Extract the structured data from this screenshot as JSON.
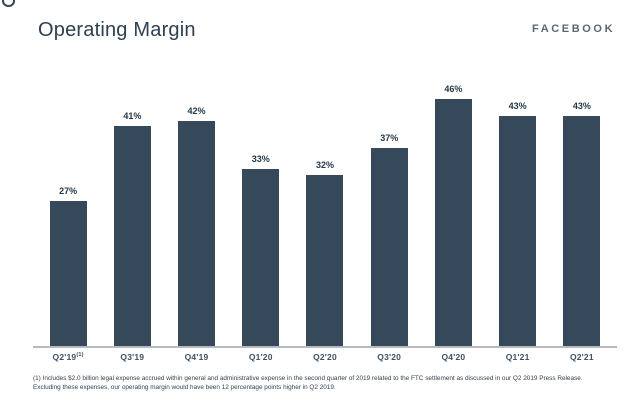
{
  "header": {
    "title": "Operating Margin",
    "logo": "FACEBOOK"
  },
  "chart_data": {
    "type": "bar",
    "title": "Operating Margin",
    "categories": [
      "Q2'19",
      "Q3'19",
      "Q4'19",
      "Q1'20",
      "Q2'20",
      "Q3'20",
      "Q4'20",
      "Q1'21",
      "Q2'21"
    ],
    "values": [
      27,
      41,
      42,
      33,
      32,
      37,
      46,
      43,
      43
    ],
    "unit": "%",
    "tick_footnote_marker": {
      "category_index": 0,
      "marker": "(1)"
    },
    "xlabel": "",
    "ylabel": "",
    "ylim": [
      0,
      50
    ],
    "grid": false,
    "legend": "none",
    "value_labels_shown": true,
    "bar_color": "#35495A"
  },
  "footnote": {
    "line1": "(1) Includes $2.0 billion legal expense accrued within general and administrative expense in the second quarter of 2019 related to the FTC settlement as discussed in our Q2 2019 Press Release.",
    "line2": "Excluding these expenses, our operating margin would have been 12 percentage points higher in Q2 2019."
  },
  "colors": {
    "bar": "#35495A",
    "title": "#2D4051",
    "value_label": "#24384A",
    "tick_label": "#3E5060",
    "axis_line": "#B8BBBE",
    "footnote": "#33424F",
    "logo": "#5A6774",
    "background": "#FFFFFF"
  }
}
